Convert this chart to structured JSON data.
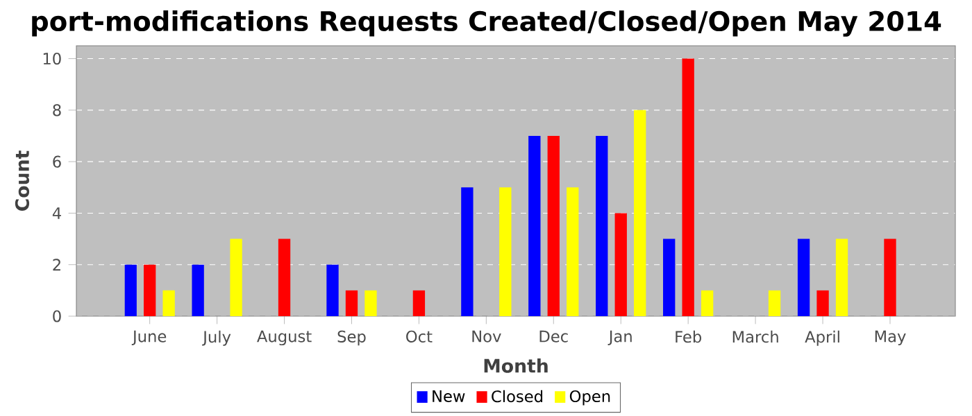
{
  "chart_data": {
    "type": "bar",
    "title": "port-modifications Requests Created/Closed/Open May 2014",
    "xlabel": "Month",
    "ylabel": "Count",
    "categories": [
      "June",
      "July",
      "August",
      "Sep",
      "Oct",
      "Nov",
      "Dec",
      "Jan",
      "Feb",
      "March",
      "April",
      "May"
    ],
    "series": [
      {
        "name": "New",
        "color": "#0000ff",
        "values": [
          2,
          2,
          0,
          2,
          0,
          5,
          7,
          7,
          3,
          0,
          3,
          0
        ]
      },
      {
        "name": "Closed",
        "color": "#ff0000",
        "values": [
          2,
          0,
          3,
          1,
          1,
          0,
          7,
          4,
          10,
          0,
          1,
          3
        ]
      },
      {
        "name": "Open",
        "color": "#ffff00",
        "values": [
          1,
          3,
          0,
          1,
          0,
          5,
          5,
          8,
          1,
          1,
          3,
          0
        ]
      }
    ],
    "ylim": [
      0,
      10.5
    ],
    "yticks": [
      0,
      2,
      4,
      6,
      8,
      10
    ],
    "grid": "y",
    "legend": "bottom"
  }
}
